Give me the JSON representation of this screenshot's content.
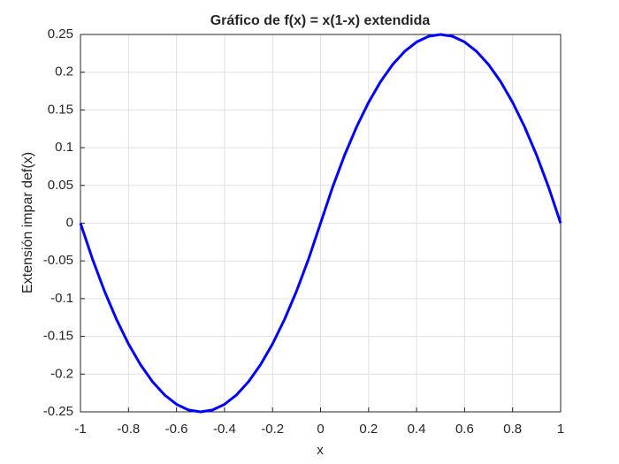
{
  "chart_data": {
    "type": "line",
    "title": "Gráfico de f(x) = x(1-x) extendida",
    "x_label": "x",
    "y_label": "Extensión impar def(x)",
    "x": [
      -1,
      -0.95,
      -0.9,
      -0.85,
      -0.8,
      -0.75,
      -0.7,
      -0.65,
      -0.6,
      -0.55,
      -0.5,
      -0.45,
      -0.4,
      -0.35,
      -0.3,
      -0.25,
      -0.2,
      -0.15,
      -0.1,
      -0.05,
      0,
      0.05,
      0.1,
      0.15,
      0.2,
      0.25,
      0.3,
      0.35,
      0.4,
      0.45,
      0.5,
      0.55,
      0.6,
      0.65,
      0.7,
      0.75,
      0.8,
      0.85,
      0.9,
      0.95,
      1
    ],
    "series": [
      {
        "color": "#0000ff",
        "values": [
          0,
          -0.0475,
          -0.09,
          -0.1275,
          -0.16,
          -0.1875,
          -0.21,
          -0.2275,
          -0.24,
          -0.2475,
          -0.25,
          -0.2475,
          -0.24,
          -0.2275,
          -0.21,
          -0.1875,
          -0.16,
          -0.1275,
          -0.09,
          -0.0475,
          0,
          0.0475,
          0.09,
          0.1275,
          0.16,
          0.1875,
          0.21,
          0.2275,
          0.24,
          0.2475,
          0.25,
          0.2475,
          0.24,
          0.2275,
          0.21,
          0.1875,
          0.16,
          0.1275,
          0.09,
          0.0475,
          0
        ]
      }
    ],
    "xlim": [
      -1,
      1
    ],
    "ylim": [
      -0.25,
      0.25
    ],
    "xticks": [
      -1,
      -0.8,
      -0.6,
      -0.4,
      -0.2,
      0,
      0.2,
      0.4,
      0.6,
      0.8,
      1
    ],
    "yticks": [
      -0.25,
      -0.2,
      -0.15,
      -0.1,
      -0.05,
      0,
      0.05,
      0.1,
      0.15,
      0.2,
      0.25
    ],
    "grid": true
  }
}
